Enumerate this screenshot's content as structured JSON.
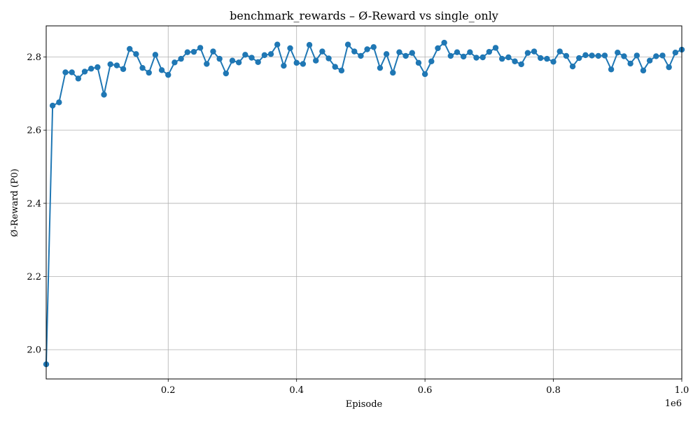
{
  "chart_data": {
    "type": "line",
    "title": "benchmark_rewards – Ø-Reward vs single_only",
    "xlabel": "Episode",
    "ylabel": "Ø-Reward (P0)",
    "x_offset_label": "1e6",
    "xlim": [
      10000,
      1000000
    ],
    "ylim": [
      1.92,
      2.885
    ],
    "xticks": [
      0.2,
      0.4,
      0.6,
      0.8,
      1.0
    ],
    "xtick_labels": [
      "0.2",
      "0.4",
      "0.6",
      "0.8",
      "1.0"
    ],
    "yticks": [
      2.0,
      2.2,
      2.4,
      2.6,
      2.8
    ],
    "ytick_labels": [
      "2.0",
      "2.2",
      "2.4",
      "2.6",
      "2.8"
    ],
    "grid": true,
    "color": "#1f77b4",
    "marker": "circle",
    "series": [
      {
        "x": [
          10000,
          20000,
          30000,
          40000,
          50000,
          60000,
          70000,
          80000,
          90000,
          100000,
          110000,
          120000,
          130000,
          140000,
          150000,
          160000,
          170000,
          180000,
          190000,
          200000,
          210000,
          220000,
          230000,
          240000,
          250000,
          260000,
          270000,
          280000,
          290000,
          300000,
          310000,
          320000,
          330000,
          340000,
          350000,
          360000,
          370000,
          380000,
          390000,
          400000,
          410000,
          420000,
          430000,
          440000,
          450000,
          460000,
          470000,
          480000,
          490000,
          500000,
          510000,
          520000,
          530000,
          540000,
          550000,
          560000,
          570000,
          580000,
          590000,
          600000,
          610000,
          620000,
          630000,
          640000,
          650000,
          660000,
          670000,
          680000,
          690000,
          700000,
          710000,
          720000,
          730000,
          740000,
          750000,
          760000,
          770000,
          780000,
          790000,
          800000,
          810000,
          820000,
          830000,
          840000,
          850000,
          860000,
          870000,
          880000,
          890000,
          900000,
          910000,
          920000,
          930000,
          940000,
          950000,
          960000,
          970000,
          980000,
          990000,
          1000000
        ],
        "values": [
          1.96,
          2.667,
          2.676,
          2.758,
          2.758,
          2.741,
          2.76,
          2.768,
          2.772,
          2.697,
          2.78,
          2.777,
          2.767,
          2.822,
          2.808,
          2.77,
          2.757,
          2.806,
          2.764,
          2.751,
          2.785,
          2.795,
          2.813,
          2.814,
          2.825,
          2.781,
          2.815,
          2.795,
          2.755,
          2.79,
          2.785,
          2.806,
          2.798,
          2.786,
          2.805,
          2.808,
          2.834,
          2.776,
          2.824,
          2.784,
          2.781,
          2.833,
          2.79,
          2.815,
          2.796,
          2.773,
          2.763,
          2.834,
          2.815,
          2.803,
          2.821,
          2.827,
          2.77,
          2.808,
          2.757,
          2.813,
          2.803,
          2.811,
          2.784,
          2.753,
          2.788,
          2.824,
          2.839,
          2.803,
          2.813,
          2.801,
          2.813,
          2.798,
          2.799,
          2.814,
          2.825,
          2.795,
          2.799,
          2.788,
          2.78,
          2.811,
          2.815,
          2.797,
          2.795,
          2.787,
          2.815,
          2.803,
          2.774,
          2.797,
          2.805,
          2.804,
          2.803,
          2.804,
          2.766,
          2.812,
          2.802,
          2.782,
          2.804,
          2.763,
          2.79,
          2.802,
          2.804,
          2.772,
          2.812,
          2.82
        ]
      }
    ]
  }
}
